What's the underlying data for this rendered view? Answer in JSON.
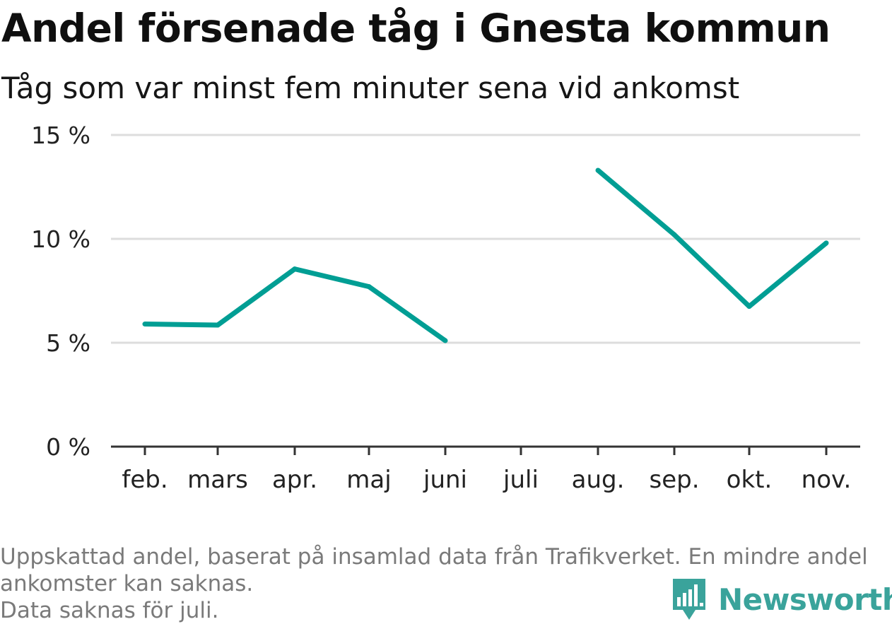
{
  "header": {
    "title": "Andel försenade tåg i Gnesta kommun",
    "subtitle": "Tåg som var minst fem minuter sena vid ankomst"
  },
  "chart_data": {
    "type": "line",
    "title": "Andel försenade tåg i Gnesta kommun",
    "subtitle": "Tåg som var minst fem minuter sena vid ankomst",
    "categories": [
      "feb.",
      "mars",
      "apr.",
      "maj",
      "juni",
      "juli",
      "aug.",
      "sep.",
      "okt.",
      "nov."
    ],
    "series": [
      {
        "values": [
          5.9,
          5.85,
          8.55,
          7.7,
          5.1,
          null,
          13.3,
          10.2,
          6.75,
          9.8
        ]
      }
    ],
    "y_ticks": [
      0,
      5,
      10,
      15
    ],
    "y_tick_labels": [
      "0 %",
      "5 %",
      "10 %",
      "15 %"
    ],
    "ylim": [
      0,
      15
    ],
    "grid": true,
    "line_color": "#009e94",
    "grid_color": "#dddddd",
    "axis_color": "#333333"
  },
  "footer": {
    "note_lines": [
      "Uppskattad andel, baserat på insamlad data från Trafikverket. En mindre andel",
      "ankomster kan saknas.",
      "Data saknas för juli."
    ],
    "brand": "Newsworthy",
    "brand_icon": "newsworthy-logo-icon",
    "brand_color": "#3aa39b"
  }
}
